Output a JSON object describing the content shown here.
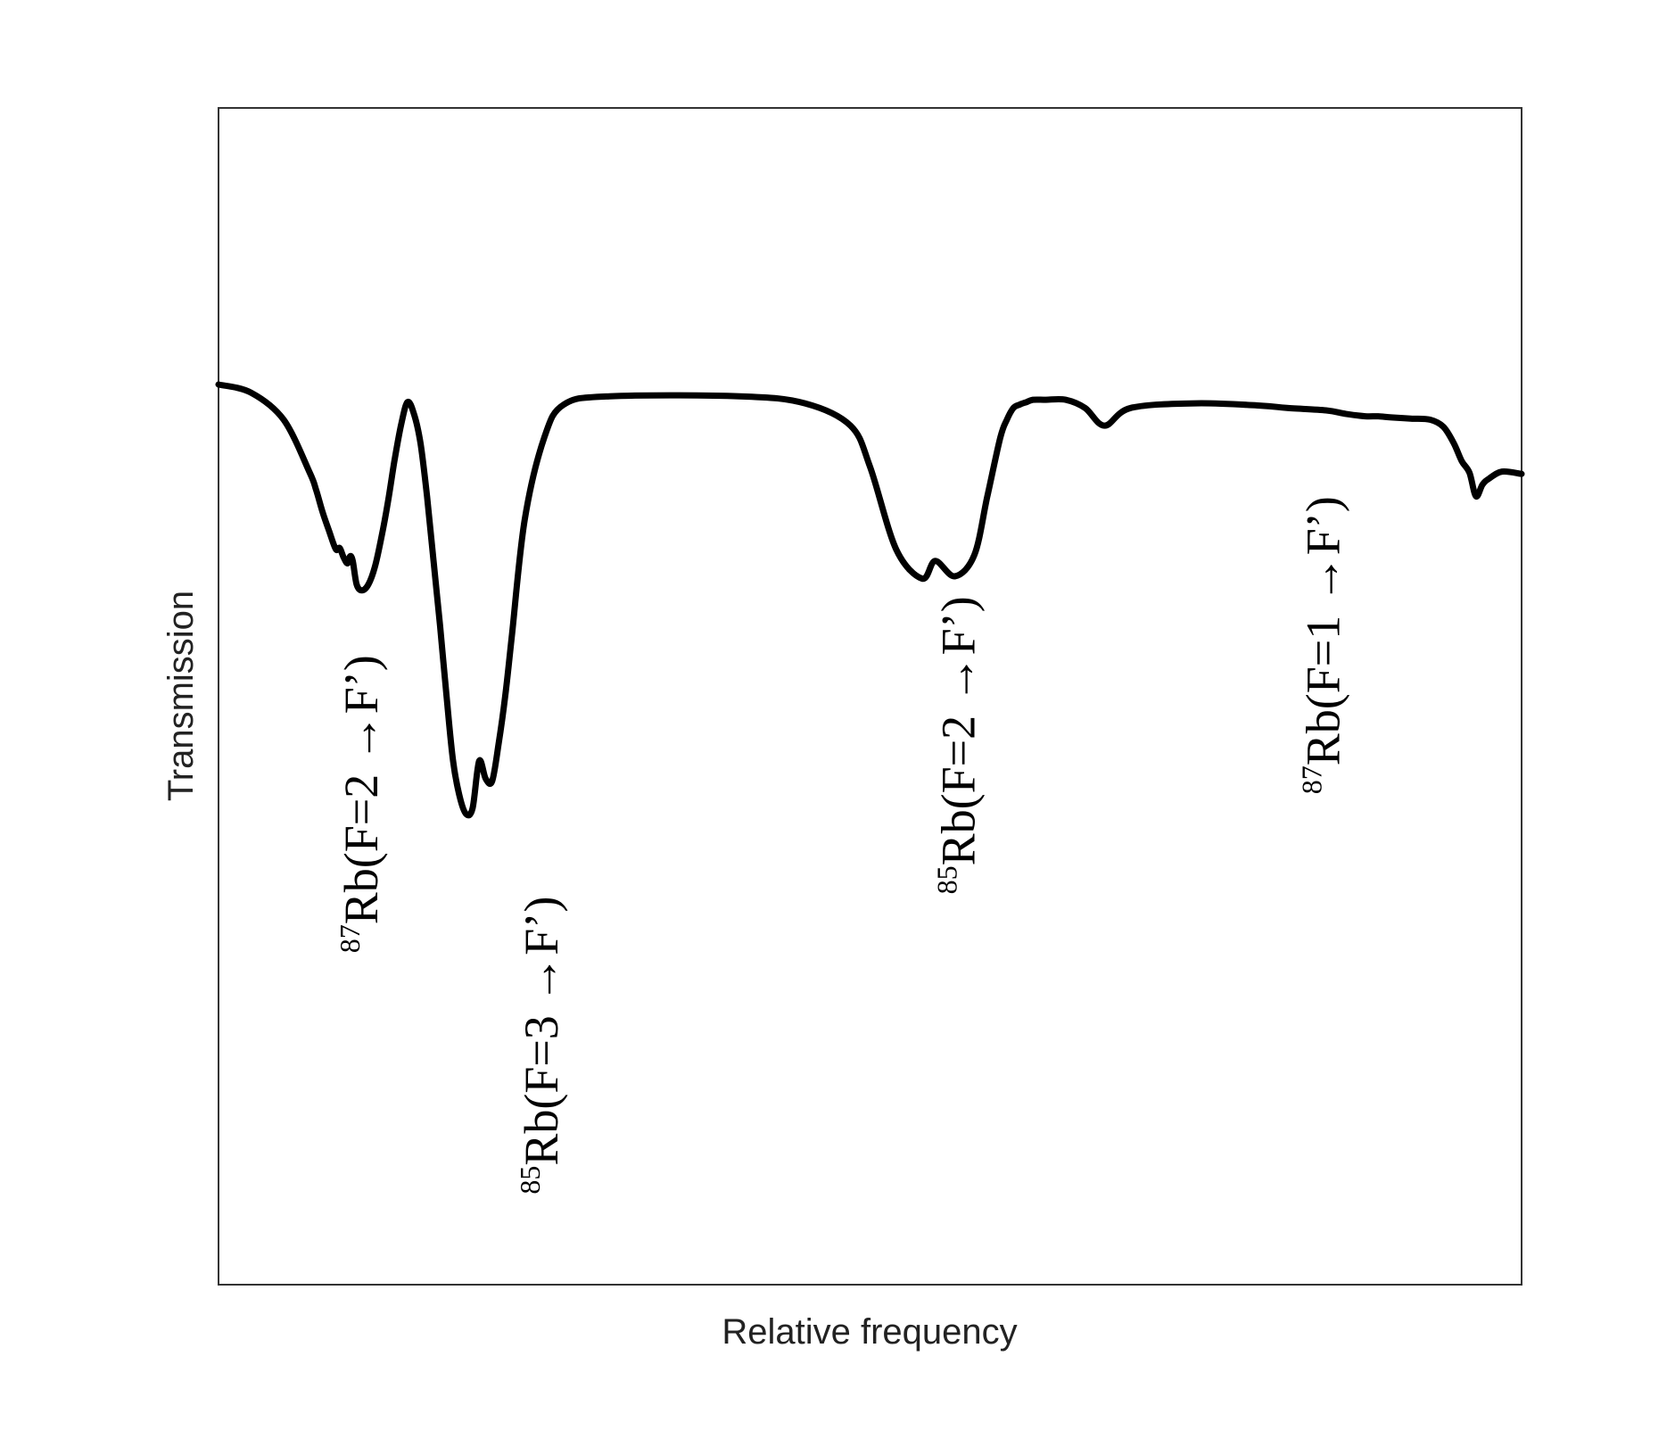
{
  "chart_data": {
    "type": "line",
    "title": "",
    "xlabel": "Relative frequency",
    "ylabel": "Transmission",
    "xlim": [
      0,
      1
    ],
    "ylim": [
      0,
      1
    ],
    "grid": false,
    "legend": "none",
    "x_ticks": [],
    "y_ticks": [],
    "series": [
      {
        "color": "#000000",
        "x": [
          0.0,
          0.025,
          0.05,
          0.07,
          0.075,
          0.08,
          0.085,
          0.09,
          0.093,
          0.096,
          0.099,
          0.101,
          0.103,
          0.106,
          0.11,
          0.115,
          0.12,
          0.125,
          0.13,
          0.135,
          0.14,
          0.145,
          0.15,
          0.155,
          0.16,
          0.165,
          0.17,
          0.175,
          0.18,
          0.185,
          0.19,
          0.195,
          0.2,
          0.205,
          0.21,
          0.215,
          0.22,
          0.225,
          0.235,
          0.25,
          0.265,
          0.3,
          0.4,
          0.45,
          0.485,
          0.5,
          0.52,
          0.54,
          0.55,
          0.565,
          0.58,
          0.59,
          0.6,
          0.605,
          0.61,
          0.615,
          0.62,
          0.625,
          0.635,
          0.65,
          0.665,
          0.68,
          0.7,
          0.75,
          0.8,
          0.82,
          0.85,
          0.865,
          0.88,
          0.89,
          0.9,
          0.915,
          0.93,
          0.94,
          0.948,
          0.954,
          0.96,
          0.965,
          0.97,
          0.975,
          0.985,
          1.0
        ],
        "y": [
          0.765,
          0.758,
          0.735,
          0.69,
          0.675,
          0.656,
          0.64,
          0.625,
          0.626,
          0.618,
          0.613,
          0.619,
          0.615,
          0.595,
          0.59,
          0.595,
          0.61,
          0.635,
          0.665,
          0.7,
          0.73,
          0.75,
          0.74,
          0.715,
          0.67,
          0.615,
          0.56,
          0.5,
          0.445,
          0.415,
          0.4,
          0.405,
          0.445,
          0.43,
          0.428,
          0.46,
          0.5,
          0.55,
          0.65,
          0.72,
          0.748,
          0.755,
          0.755,
          0.749,
          0.73,
          0.695,
          0.625,
          0.6,
          0.615,
          0.602,
          0.62,
          0.67,
          0.72,
          0.735,
          0.745,
          0.748,
          0.75,
          0.752,
          0.752,
          0.752,
          0.745,
          0.73,
          0.745,
          0.749,
          0.747,
          0.745,
          0.743,
          0.74,
          0.738,
          0.738,
          0.737,
          0.736,
          0.735,
          0.729,
          0.715,
          0.7,
          0.69,
          0.67,
          0.68,
          0.685,
          0.691,
          0.689
        ]
      }
    ],
    "annotations": [
      {
        "x": 0.122,
        "y": 0.535,
        "isotope": "87",
        "text": "Rb(F=2 →F’)"
      },
      {
        "x": 0.26,
        "y": 0.33,
        "isotope": "85",
        "text": "Rb(F=3 →F’)"
      },
      {
        "x": 0.58,
        "y": 0.585,
        "isotope": "85",
        "text": "Rb(F=2 →F’)"
      },
      {
        "x": 0.86,
        "y": 0.67,
        "isotope": "87",
        "text": "Rb(F=1 →F’)"
      }
    ]
  }
}
